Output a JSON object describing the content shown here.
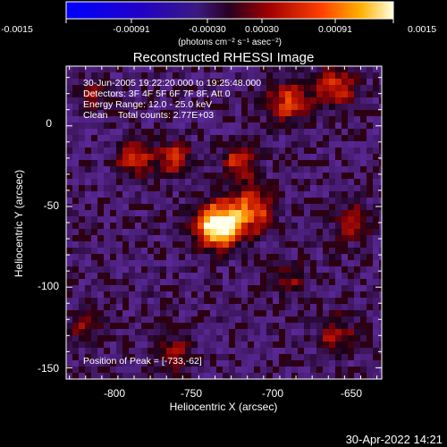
{
  "colorbar": {
    "ticks": [
      "-0.0015",
      "-0.00091",
      "-0.00030",
      "0.00030",
      "0.00091",
      "0.0015"
    ],
    "label": "(photons cm⁻² s⁻¹ asec⁻²)"
  },
  "plot": {
    "title": "Reconstructed RHESSI Image",
    "xlabel": "Heliocentric X (arcsec)",
    "ylabel": "Heliocentric Y (arcsec)",
    "x_ticks": [
      "-800",
      "-750",
      "-700",
      "-650"
    ],
    "y_ticks": [
      "0",
      "-50",
      "-100",
      "-150"
    ],
    "annotations": [
      "30-Jun-2005 19:22:20.000 to 19:25:48.000",
      "Detectors: 3F 4F 5F 6F 7F 8F, Att 0",
      "Energy Range: 12.0 - 25.0 keV",
      "Clean    Total counts: 2.77E+03"
    ],
    "peak_text": "Position of Peak = [-733,-62]"
  },
  "footer": {
    "timestamp": "30-Apr-2022 14:21"
  },
  "chart_data": {
    "type": "heatmap",
    "title": "Reconstructed RHESSI Image",
    "xlabel": "Heliocentric X (arcsec)",
    "ylabel": "Heliocentric Y (arcsec)",
    "xlim": [
      -827,
      -632
    ],
    "ylim": [
      -157,
      37
    ],
    "x_ticks": [
      -800,
      -750,
      -700,
      -650
    ],
    "y_ticks": [
      0,
      -50,
      -100,
      -150
    ],
    "colorbar_range": [
      -0.0015,
      0.0015
    ],
    "peak": [
      -733,
      -62
    ],
    "sources": [
      {
        "x": -733,
        "y": -62,
        "amplitude": 1.0,
        "sigma": 10
      },
      {
        "x": -712,
        "y": -52,
        "amplitude": 0.55,
        "sigma": 10
      },
      {
        "x": -785,
        "y": -20,
        "amplitude": 0.5,
        "sigma": 8
      },
      {
        "x": -760,
        "y": -20,
        "amplitude": 0.45,
        "sigma": 8
      },
      {
        "x": -720,
        "y": -22,
        "amplitude": 0.45,
        "sigma": 8
      },
      {
        "x": -690,
        "y": 15,
        "amplitude": 0.5,
        "sigma": 10
      },
      {
        "x": -660,
        "y": 25,
        "amplitude": 0.45,
        "sigma": 10
      },
      {
        "x": -650,
        "y": -60,
        "amplitude": 0.4,
        "sigma": 9
      },
      {
        "x": -660,
        "y": -130,
        "amplitude": 0.35,
        "sigma": 9
      },
      {
        "x": -760,
        "y": -140,
        "amplitude": 0.35,
        "sigma": 9
      },
      {
        "x": -815,
        "y": -125,
        "amplitude": 0.3,
        "sigma": 8
      },
      {
        "x": -690,
        "y": -95,
        "amplitude": 0.3,
        "sigma": 8
      },
      {
        "x": -810,
        "y": 20,
        "amplitude": 0.3,
        "sigma": 7
      }
    ]
  },
  "colors": {
    "background": "#000000",
    "foreground": "#ffffff"
  }
}
